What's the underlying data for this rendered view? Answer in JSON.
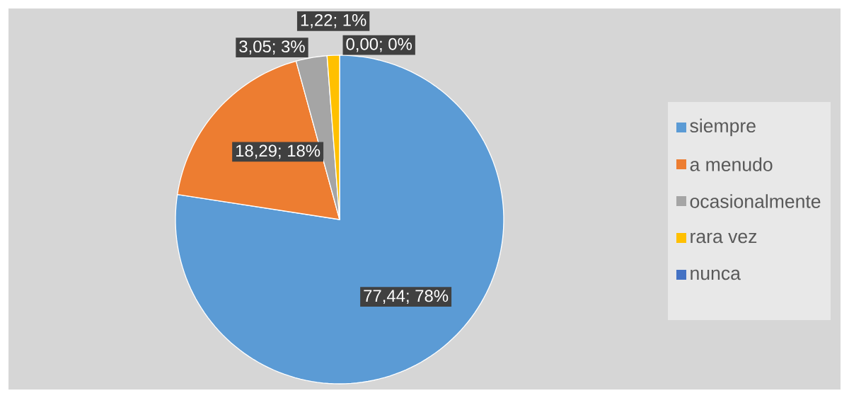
{
  "chart_data": {
    "type": "pie",
    "categories": [
      "siempre",
      "a menudo",
      "ocasionalmente",
      "rara vez",
      "nunca"
    ],
    "values": [
      77.44,
      18.29,
      3.05,
      1.22,
      0.0
    ],
    "colors": [
      "#5b9bd5",
      "#ed7d31",
      "#a5a5a5",
      "#ffc000",
      "#4472c4"
    ],
    "value_labels": [
      "77,44; 78%",
      "18,29; 18%",
      "3,05; 3%",
      "1,22; 1%",
      "0,00; 0%"
    ],
    "legend": "right"
  }
}
